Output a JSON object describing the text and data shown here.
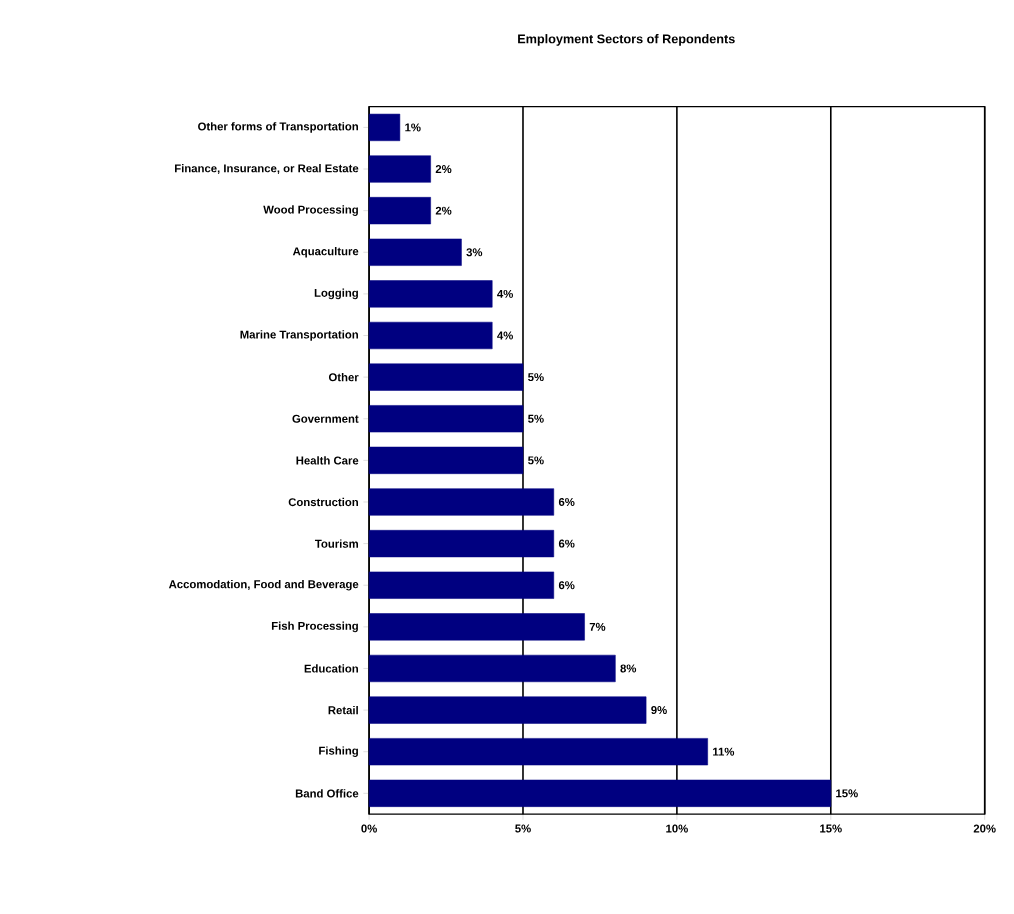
{
  "chart_data": {
    "type": "bar",
    "orientation": "horizontal",
    "title": "Employment Sectors of Repondents",
    "categories": [
      "Other forms of Transportation",
      "Finance, Insurance, or Real Estate",
      "Wood Processing",
      "Aquaculture",
      "Logging",
      "Marine Transportation",
      "Other",
      "Government",
      "Health Care",
      "Construction",
      "Tourism",
      "Accomodation, Food and Beverage",
      "Fish Processing",
      "Education",
      "Retail",
      "Fishing",
      "Band Office"
    ],
    "values": [
      1,
      2,
      2,
      3,
      4,
      4,
      5,
      5,
      5,
      6,
      6,
      6,
      7,
      8,
      9,
      11,
      15
    ],
    "value_labels": [
      "1%",
      "2%",
      "2%",
      "3%",
      "4%",
      "4%",
      "5%",
      "5%",
      "5%",
      "6%",
      "6%",
      "6%",
      "7%",
      "8%",
      "9%",
      "11%",
      "15%"
    ],
    "color": "#000080",
    "xlim": [
      0,
      20
    ],
    "xticks": [
      {
        "value": 0,
        "label": "0%"
      },
      {
        "value": 5,
        "label": "5%"
      },
      {
        "value": 10,
        "label": "10%"
      },
      {
        "value": 15,
        "label": "15%"
      },
      {
        "value": 20,
        "label": "20%"
      }
    ],
    "grid": "x"
  }
}
